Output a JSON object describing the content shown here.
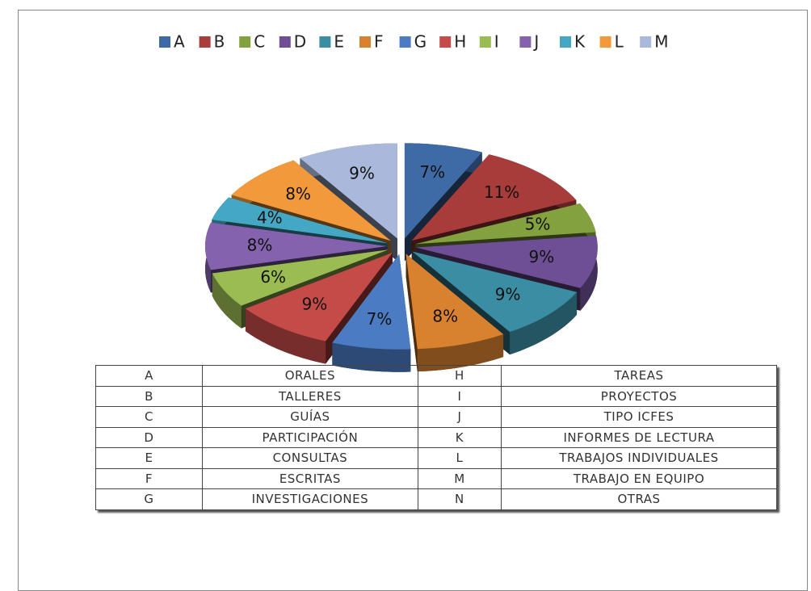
{
  "chart_data": {
    "type": "pie",
    "categories": [
      "A",
      "B",
      "C",
      "D",
      "E",
      "F",
      "G",
      "H",
      "I",
      "J",
      "K",
      "L",
      "M"
    ],
    "values": [
      7,
      11,
      5,
      9,
      9,
      8,
      7,
      9,
      6,
      8,
      4,
      8,
      9
    ],
    "value_labels": [
      "7%",
      "11%",
      "5%",
      "9%",
      "9%",
      "8%",
      "7%",
      "9%",
      "6%",
      "8%",
      "4%",
      "8%",
      "9%"
    ],
    "colors": [
      "#3e6aa6",
      "#a83c3a",
      "#83a13f",
      "#6e4f95",
      "#3b8da3",
      "#d8812f",
      "#4a7bc3",
      "#c54b48",
      "#9abc52",
      "#8462ad",
      "#44a8c5",
      "#f29a3b",
      "#a9b8db"
    ],
    "legend": "top"
  },
  "table": {
    "rows": [
      [
        "A",
        "ORALES",
        "H",
        "TAREAS"
      ],
      [
        "B",
        "TALLERES",
        "I",
        "PROYECTOS"
      ],
      [
        "C",
        "GUÍAS",
        "J",
        "TIPO ICFES"
      ],
      [
        "D",
        "PARTICIPACIÓN",
        "K",
        "INFORMES DE LECTURA"
      ],
      [
        "E",
        "CONSULTAS",
        "L",
        "TRABAJOS INDIVIDUALES"
      ],
      [
        "F",
        "ESCRITAS",
        "M",
        "TRABAJO EN EQUIPO"
      ],
      [
        "G",
        "INVESTIGACIONES",
        "N",
        "OTRAS"
      ]
    ]
  }
}
